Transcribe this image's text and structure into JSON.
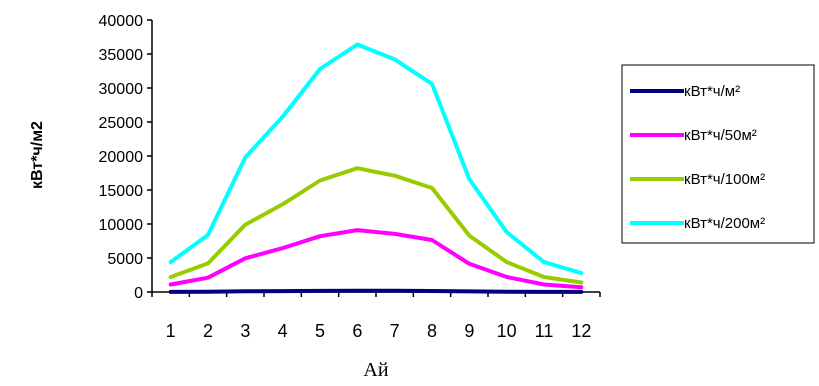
{
  "chart_data": {
    "type": "line",
    "xlabel": "Ай",
    "ylabel": "кВт*ч/м2",
    "x": [
      1,
      2,
      3,
      4,
      5,
      6,
      7,
      8,
      9,
      10,
      11,
      12
    ],
    "ylim": [
      0,
      40000
    ],
    "yticks": [
      0,
      5000,
      10000,
      15000,
      20000,
      25000,
      30000,
      35000,
      40000
    ],
    "grid": false,
    "legend_position": "right",
    "series": [
      {
        "name": "кВт*ч/м²",
        "color": "#000080",
        "values": [
          22,
          42,
          99,
          129,
          164,
          182,
          171,
          153,
          83,
          44,
          22,
          14
        ]
      },
      {
        "name": "кВт*ч/50м²",
        "color": "#ff00ff",
        "values": [
          1100,
          2100,
          4950,
          6450,
          8200,
          9100,
          8550,
          7650,
          4150,
          2200,
          1100,
          700
        ]
      },
      {
        "name": "кВт*ч/100м²",
        "color": "#99cc00",
        "values": [
          2200,
          4200,
          9900,
          12900,
          16400,
          18200,
          17100,
          15300,
          8300,
          4400,
          2200,
          1400
        ]
      },
      {
        "name": "кВт*ч/200м²",
        "color": "#00ffff",
        "values": [
          4400,
          8400,
          19800,
          25800,
          32800,
          36400,
          34200,
          30600,
          16600,
          8800,
          4400,
          2800
        ]
      }
    ]
  }
}
